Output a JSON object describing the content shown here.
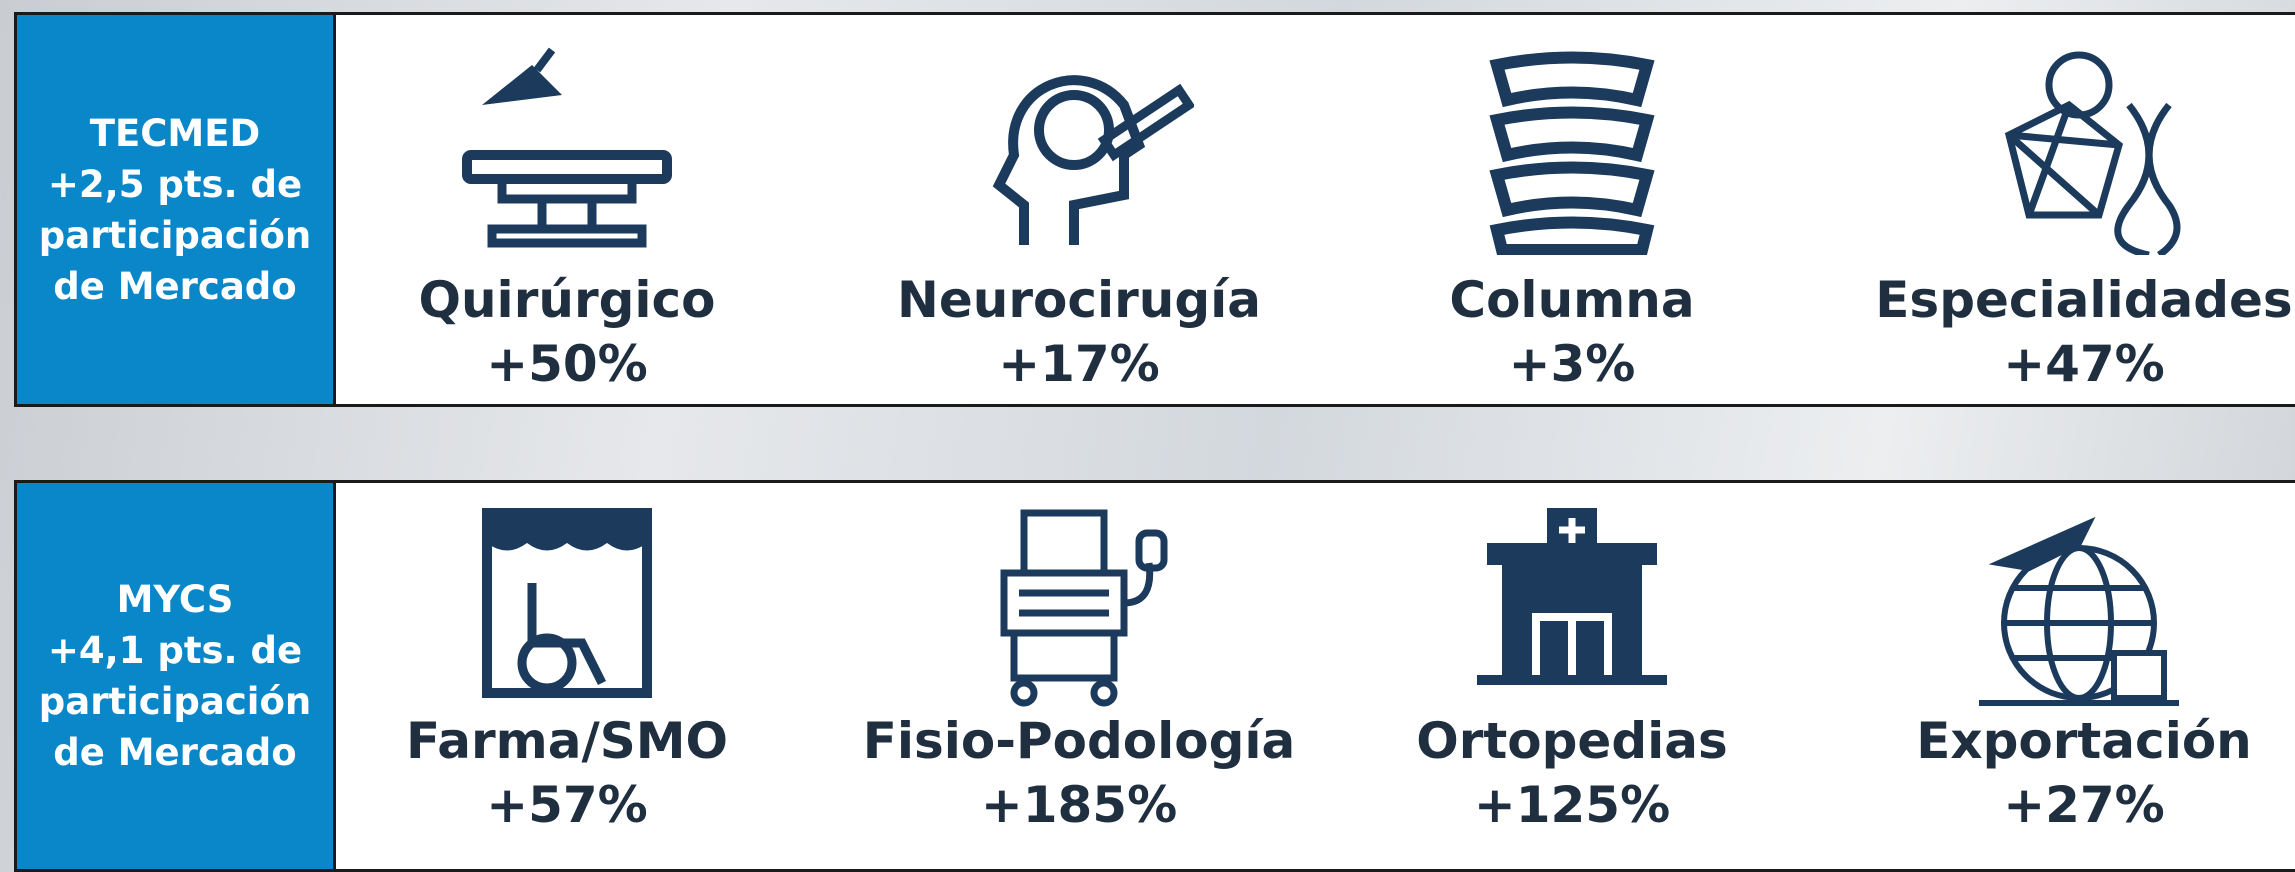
{
  "panels": [
    {
      "heading": [
        "TECMED",
        "+2,5 pts. de",
        "participación",
        "de Mercado"
      ],
      "items": [
        {
          "label": "Quirúrgico",
          "value": "+50%"
        },
        {
          "label": "Neurocirugía",
          "value": "+17%"
        },
        {
          "label": "Columna",
          "value": "+3%"
        },
        {
          "label": "Especialidades",
          "value": "+47%"
        }
      ]
    },
    {
      "heading": [
        "MYCS",
        "+4,1 pts. de",
        "participación",
        "de Mercado"
      ],
      "items": [
        {
          "label": "Farma/SMO",
          "value": "+57%"
        },
        {
          "label": "Fisio-Podología",
          "value": "+185%"
        },
        {
          "label": "Ortopedias",
          "value": "+125%"
        },
        {
          "label": "Exportación",
          "value": "+27%"
        }
      ]
    }
  ]
}
